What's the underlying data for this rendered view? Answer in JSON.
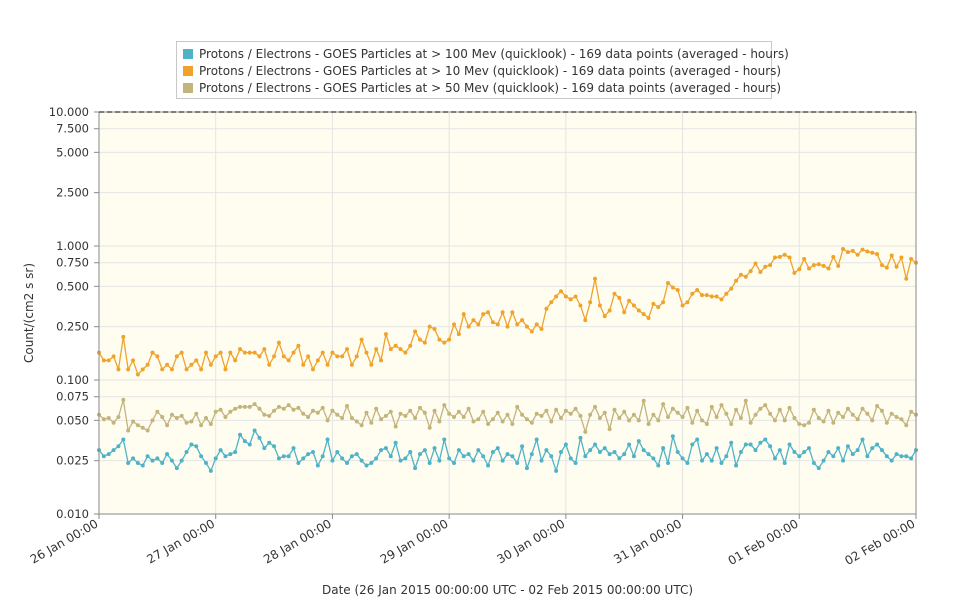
{
  "chart_data": {
    "type": "line",
    "title": "",
    "xlabel": "Date (26 Jan 2015 00:00:00 UTC - 02 Feb 2015 00:00:00 UTC)",
    "ylabel": "Count/(cm2 s sr)",
    "y_scale": "log",
    "ylim": [
      0.01,
      10
    ],
    "y_ticks": [
      0.01,
      0.025,
      0.05,
      0.075,
      0.1,
      0.25,
      0.5,
      0.75,
      1,
      2.5,
      5,
      7.5,
      10
    ],
    "y_tick_labels": [
      "0.010",
      "0.025",
      "0.050",
      "0.075",
      "0.100",
      "0.250",
      "0.500",
      "0.750",
      "1.000",
      "2.500",
      "5.000",
      "7.500",
      "10.000"
    ],
    "x_ticks": [
      "2015-01-26 00:00",
      "2015-01-27 00:00",
      "2015-01-28 00:00",
      "2015-01-29 00:00",
      "2015-01-30 00:00",
      "2015-01-31 00:00",
      "2015-02-01 00:00",
      "2015-02-02 00:00"
    ],
    "x_tick_labels": [
      "26 Jan 00:00",
      "27 Jan 00:00",
      "28 Jan 00:00",
      "29 Jan 00:00",
      "30 Jan 00:00",
      "31 Jan 00:00",
      "01 Feb 00:00",
      "02 Feb 00:00"
    ],
    "x_range": [
      "2015-01-26 00:00",
      "2015-02-02 00:00"
    ],
    "grid": true,
    "legend_position": "top",
    "x_sampling": "hourly from 2015-01-26 00:00",
    "series": [
      {
        "name": "Protons / Electrons - GOES Particles at > 100 Mev (quicklook) - 169 data points (averaged - hours)",
        "color": "#4fb3c8",
        "values": [
          0.03,
          0.027,
          0.028,
          0.03,
          0.032,
          0.036,
          0.024,
          0.026,
          0.024,
          0.023,
          0.027,
          0.025,
          0.026,
          0.024,
          0.028,
          0.025,
          0.022,
          0.025,
          0.029,
          0.033,
          0.032,
          0.027,
          0.024,
          0.021,
          0.026,
          0.03,
          0.027,
          0.028,
          0.029,
          0.039,
          0.035,
          0.033,
          0.042,
          0.037,
          0.031,
          0.034,
          0.032,
          0.026,
          0.027,
          0.027,
          0.031,
          0.024,
          0.026,
          0.028,
          0.029,
          0.023,
          0.027,
          0.036,
          0.025,
          0.029,
          0.026,
          0.024,
          0.027,
          0.028,
          0.025,
          0.023,
          0.024,
          0.026,
          0.03,
          0.031,
          0.027,
          0.034,
          0.025,
          0.026,
          0.029,
          0.022,
          0.028,
          0.03,
          0.024,
          0.031,
          0.025,
          0.036,
          0.026,
          0.024,
          0.03,
          0.027,
          0.028,
          0.025,
          0.03,
          0.027,
          0.023,
          0.029,
          0.031,
          0.025,
          0.028,
          0.027,
          0.024,
          0.032,
          0.022,
          0.028,
          0.036,
          0.025,
          0.03,
          0.027,
          0.021,
          0.029,
          0.033,
          0.026,
          0.024,
          0.037,
          0.027,
          0.03,
          0.033,
          0.029,
          0.031,
          0.028,
          0.029,
          0.026,
          0.028,
          0.033,
          0.027,
          0.035,
          0.03,
          0.028,
          0.026,
          0.023,
          0.031,
          0.024,
          0.038,
          0.029,
          0.026,
          0.024,
          0.033,
          0.036,
          0.025,
          0.028,
          0.025,
          0.031,
          0.024,
          0.027,
          0.034,
          0.023,
          0.029,
          0.033,
          0.033,
          0.03,
          0.034,
          0.036,
          0.032,
          0.026,
          0.03,
          0.024,
          0.033,
          0.029,
          0.027,
          0.029,
          0.031,
          0.024,
          0.022,
          0.025,
          0.029,
          0.027,
          0.031,
          0.025,
          0.032,
          0.028,
          0.03,
          0.036,
          0.027,
          0.031,
          0.033,
          0.03,
          0.027,
          0.025,
          0.028,
          0.027,
          0.027,
          0.026,
          0.03
        ]
      },
      {
        "name": "Protons / Electrons - GOES Particles at > 10 Mev (quicklook) - 169 data points (averaged - hours)",
        "color": "#f0a32b",
        "values": [
          0.16,
          0.14,
          0.14,
          0.15,
          0.12,
          0.21,
          0.12,
          0.14,
          0.11,
          0.12,
          0.13,
          0.16,
          0.15,
          0.12,
          0.13,
          0.12,
          0.15,
          0.16,
          0.12,
          0.13,
          0.14,
          0.12,
          0.16,
          0.13,
          0.15,
          0.16,
          0.12,
          0.16,
          0.14,
          0.17,
          0.16,
          0.16,
          0.16,
          0.15,
          0.17,
          0.13,
          0.15,
          0.19,
          0.15,
          0.14,
          0.16,
          0.18,
          0.13,
          0.15,
          0.12,
          0.14,
          0.16,
          0.13,
          0.16,
          0.15,
          0.15,
          0.17,
          0.13,
          0.15,
          0.2,
          0.16,
          0.13,
          0.17,
          0.14,
          0.22,
          0.17,
          0.18,
          0.17,
          0.16,
          0.18,
          0.23,
          0.2,
          0.19,
          0.25,
          0.24,
          0.2,
          0.19,
          0.2,
          0.26,
          0.22,
          0.31,
          0.25,
          0.28,
          0.26,
          0.31,
          0.32,
          0.27,
          0.26,
          0.32,
          0.25,
          0.32,
          0.26,
          0.28,
          0.25,
          0.23,
          0.26,
          0.24,
          0.34,
          0.38,
          0.42,
          0.46,
          0.42,
          0.4,
          0.42,
          0.36,
          0.28,
          0.38,
          0.57,
          0.36,
          0.3,
          0.33,
          0.44,
          0.41,
          0.32,
          0.39,
          0.36,
          0.33,
          0.31,
          0.29,
          0.37,
          0.35,
          0.38,
          0.53,
          0.49,
          0.47,
          0.36,
          0.38,
          0.44,
          0.47,
          0.43,
          0.43,
          0.42,
          0.42,
          0.4,
          0.44,
          0.48,
          0.55,
          0.61,
          0.59,
          0.65,
          0.74,
          0.64,
          0.7,
          0.72,
          0.82,
          0.83,
          0.86,
          0.82,
          0.63,
          0.67,
          0.8,
          0.68,
          0.72,
          0.73,
          0.71,
          0.68,
          0.83,
          0.71,
          0.95,
          0.9,
          0.92,
          0.86,
          0.94,
          0.91,
          0.89,
          0.87,
          0.72,
          0.69,
          0.85,
          0.7,
          0.82,
          0.57,
          0.8,
          0.75
        ]
      },
      {
        "name": "Protons / Electrons - GOES Particles at > 50 Mev (quicklook) - 169 data points (averaged - hours)",
        "color": "#c3b47b",
        "values": [
          0.055,
          0.051,
          0.052,
          0.048,
          0.053,
          0.071,
          0.042,
          0.049,
          0.046,
          0.044,
          0.042,
          0.05,
          0.058,
          0.053,
          0.046,
          0.055,
          0.052,
          0.054,
          0.048,
          0.049,
          0.056,
          0.046,
          0.052,
          0.047,
          0.058,
          0.06,
          0.053,
          0.058,
          0.061,
          0.063,
          0.063,
          0.063,
          0.066,
          0.061,
          0.055,
          0.054,
          0.059,
          0.063,
          0.061,
          0.065,
          0.06,
          0.062,
          0.056,
          0.053,
          0.059,
          0.057,
          0.062,
          0.05,
          0.059,
          0.055,
          0.052,
          0.064,
          0.052,
          0.049,
          0.046,
          0.057,
          0.048,
          0.061,
          0.051,
          0.054,
          0.058,
          0.045,
          0.056,
          0.054,
          0.059,
          0.052,
          0.062,
          0.057,
          0.044,
          0.059,
          0.049,
          0.065,
          0.056,
          0.053,
          0.058,
          0.053,
          0.061,
          0.049,
          0.051,
          0.058,
          0.047,
          0.051,
          0.057,
          0.049,
          0.055,
          0.047,
          0.063,
          0.055,
          0.051,
          0.048,
          0.056,
          0.054,
          0.059,
          0.049,
          0.06,
          0.052,
          0.059,
          0.056,
          0.061,
          0.054,
          0.041,
          0.055,
          0.063,
          0.052,
          0.057,
          0.043,
          0.06,
          0.052,
          0.058,
          0.05,
          0.055,
          0.05,
          0.07,
          0.047,
          0.055,
          0.05,
          0.066,
          0.053,
          0.061,
          0.057,
          0.053,
          0.062,
          0.048,
          0.059,
          0.05,
          0.047,
          0.063,
          0.053,
          0.065,
          0.056,
          0.047,
          0.06,
          0.052,
          0.07,
          0.048,
          0.055,
          0.061,
          0.065,
          0.056,
          0.05,
          0.06,
          0.05,
          0.062,
          0.052,
          0.047,
          0.046,
          0.048,
          0.06,
          0.052,
          0.049,
          0.059,
          0.048,
          0.057,
          0.053,
          0.061,
          0.055,
          0.051,
          0.061,
          0.056,
          0.05,
          0.064,
          0.059,
          0.048,
          0.056,
          0.053,
          0.051,
          0.046,
          0.058,
          0.055
        ]
      }
    ]
  }
}
